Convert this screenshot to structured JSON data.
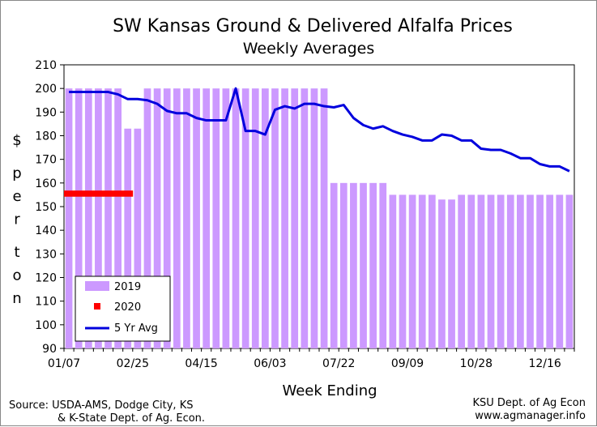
{
  "chart_data": {
    "type": "bar",
    "title": "SW Kansas Ground & Delivered Alfalfa Prices",
    "subtitle": "Weekly Averages",
    "xlabel": "Week Ending",
    "ylabel": "$ per ton",
    "ylim": [
      90,
      210
    ],
    "yticks": [
      90,
      100,
      110,
      120,
      130,
      140,
      150,
      160,
      170,
      180,
      190,
      200,
      210
    ],
    "xtick_labels": [
      "01/07",
      "02/25",
      "04/15",
      "06/03",
      "07/22",
      "09/09",
      "10/28",
      "12/16"
    ],
    "xtick_weeks": [
      1,
      8,
      15,
      22,
      29,
      36,
      43,
      50
    ],
    "weeks": [
      1,
      2,
      3,
      4,
      5,
      6,
      7,
      8,
      9,
      10,
      11,
      12,
      13,
      14,
      15,
      16,
      17,
      18,
      19,
      20,
      21,
      22,
      23,
      24,
      25,
      26,
      27,
      28,
      29,
      30,
      31,
      32,
      33,
      34,
      35,
      36,
      37,
      38,
      39,
      40,
      41,
      42,
      43,
      44,
      45,
      46,
      47,
      48,
      49,
      50,
      51,
      52
    ],
    "series": [
      {
        "name": "2019",
        "type": "bar",
        "color": "#cc99ff",
        "values": [
          200,
          200,
          200,
          200,
          200,
          200,
          183,
          183,
          200,
          200,
          200,
          200,
          200,
          200,
          200,
          200,
          200,
          200,
          200,
          200,
          200,
          200,
          200,
          200,
          200,
          200,
          200,
          160,
          160,
          160,
          160,
          160,
          160,
          155,
          155,
          155,
          155,
          155,
          153,
          153,
          155,
          155,
          155,
          155,
          155,
          155,
          155,
          155,
          155,
          155,
          155,
          155
        ]
      },
      {
        "name": "2020",
        "type": "bar",
        "color": "#ff0000",
        "values": [
          155.5,
          155.5,
          155.5,
          155.5,
          155.5,
          155.5,
          155.5,
          null,
          null,
          null,
          null,
          null,
          null,
          null,
          null,
          null,
          null,
          null,
          null,
          null,
          null,
          null,
          null,
          null,
          null,
          null,
          null,
          null,
          null,
          null,
          null,
          null,
          null,
          null,
          null,
          null,
          null,
          null,
          null,
          null,
          null,
          null,
          null,
          null,
          null,
          null,
          null,
          null,
          null,
          null,
          null,
          null
        ]
      },
      {
        "name": "5 Yr Avg",
        "type": "line",
        "color": "#0000dd",
        "values": [
          198.5,
          198.5,
          198.5,
          198.5,
          198.5,
          197.5,
          195.5,
          195.5,
          195,
          193.5,
          190.5,
          189.5,
          189.5,
          187.5,
          186.5,
          186.5,
          186.5,
          200,
          182,
          182,
          180.5,
          191,
          192.5,
          191.5,
          193.5,
          193.5,
          192.5,
          192,
          193,
          187.5,
          184.5,
          183,
          184,
          182,
          180.5,
          179.5,
          178,
          178,
          180.5,
          180,
          178,
          178,
          174.5,
          174,
          174,
          172.5,
          170.5,
          170.5,
          168,
          167,
          167,
          165
        ]
      }
    ],
    "legend": {
      "position": "bottom-left",
      "entries": [
        "2019",
        "2020",
        "5 Yr Avg"
      ]
    },
    "grid": false,
    "source_left": [
      "Source: USDA-AMS, Dodge City, KS",
      "& K-State Dept. of Ag. Econ."
    ],
    "source_right": [
      "KSU Dept. of Ag Econ",
      "www.agmanager.info"
    ]
  },
  "colors": {
    "plot_background": "#ffffff",
    "bar_2019": "#cc99ff",
    "bar_2020": "#ff0000",
    "line_5yr": "#0000dd"
  }
}
